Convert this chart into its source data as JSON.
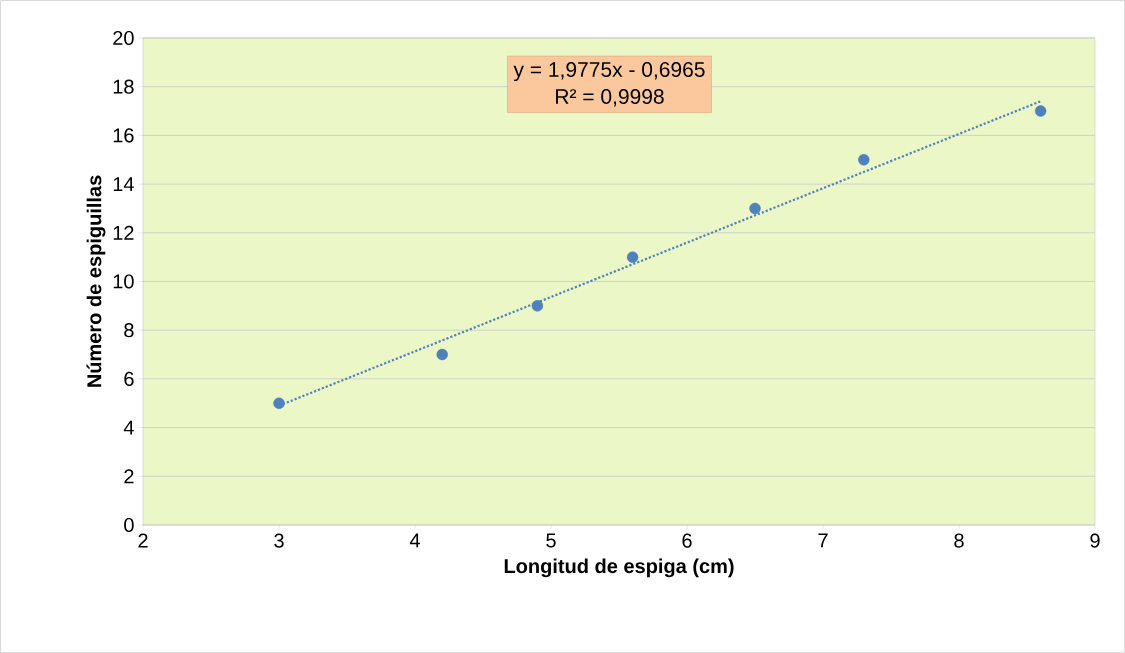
{
  "chart_data": {
    "type": "scatter",
    "xlabel": "Longitud de espiga (cm)",
    "ylabel": "Número de espiguillas",
    "annotations": [
      "y = 1,9775x - 0,6965",
      "R² = 0,9998"
    ],
    "xlim": [
      2,
      9
    ],
    "ylim": [
      0,
      20
    ],
    "xticks": [
      2,
      3,
      4,
      5,
      6,
      7,
      8,
      9
    ],
    "yticks": [
      0,
      2,
      4,
      6,
      8,
      10,
      12,
      14,
      16,
      18,
      20
    ],
    "grid": "y",
    "series": [
      {
        "color": "#4f81bd",
        "marker": "circle",
        "x": [
          3,
          4.2,
          4.9,
          5.6,
          6.5,
          7.3,
          8.6
        ],
        "values": [
          5,
          7,
          9,
          11,
          13,
          15,
          17
        ]
      },
      {
        "type": "line",
        "color": "#4f81bd",
        "marker": "none",
        "line_style": "dotted",
        "x": [
          3,
          8.6
        ],
        "values": [
          4.9,
          17.4
        ]
      }
    ]
  }
}
